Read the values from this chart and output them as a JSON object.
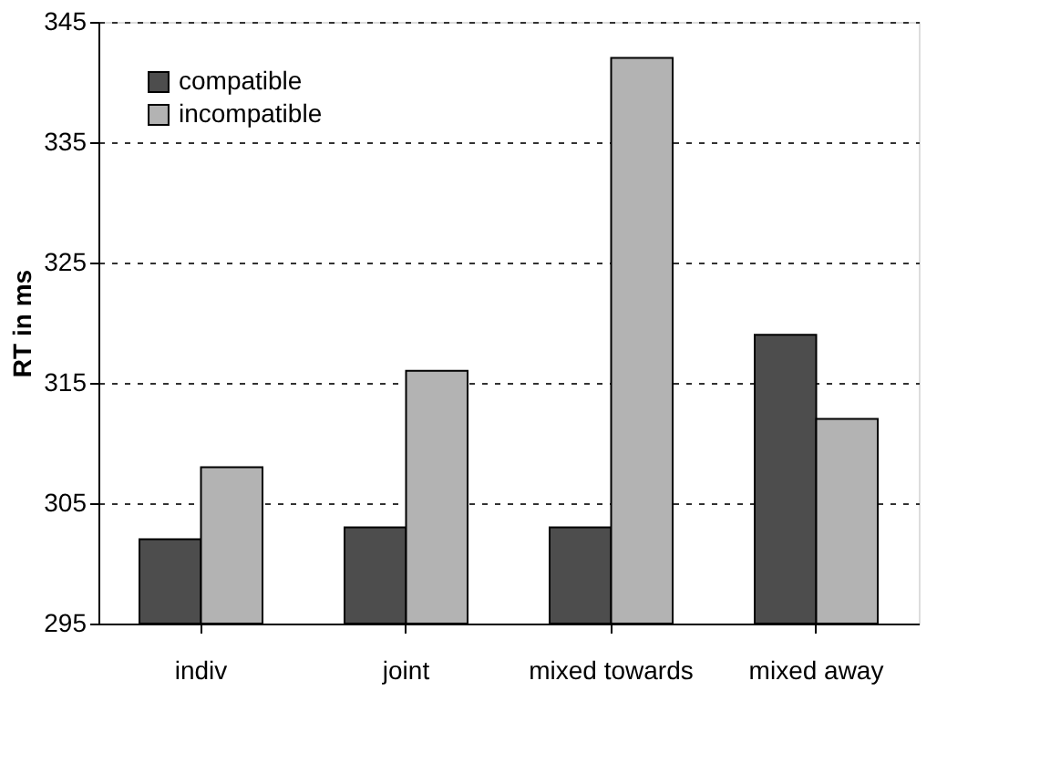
{
  "chart_data": {
    "type": "bar",
    "ylabel": "RT in ms",
    "categories": [
      "indiv",
      "joint",
      "mixed towards",
      "mixed away"
    ],
    "series": [
      {
        "name": "compatible",
        "color": "#4d4d4d",
        "values": [
          302,
          303,
          303,
          319
        ]
      },
      {
        "name": "incompatible",
        "color": "#b3b3b3",
        "values": [
          308,
          316,
          342,
          312
        ]
      }
    ],
    "ylim": [
      295,
      345
    ],
    "yticks": [
      295,
      305,
      315,
      325,
      335,
      345
    ],
    "grid": "y",
    "legend": "top left"
  }
}
